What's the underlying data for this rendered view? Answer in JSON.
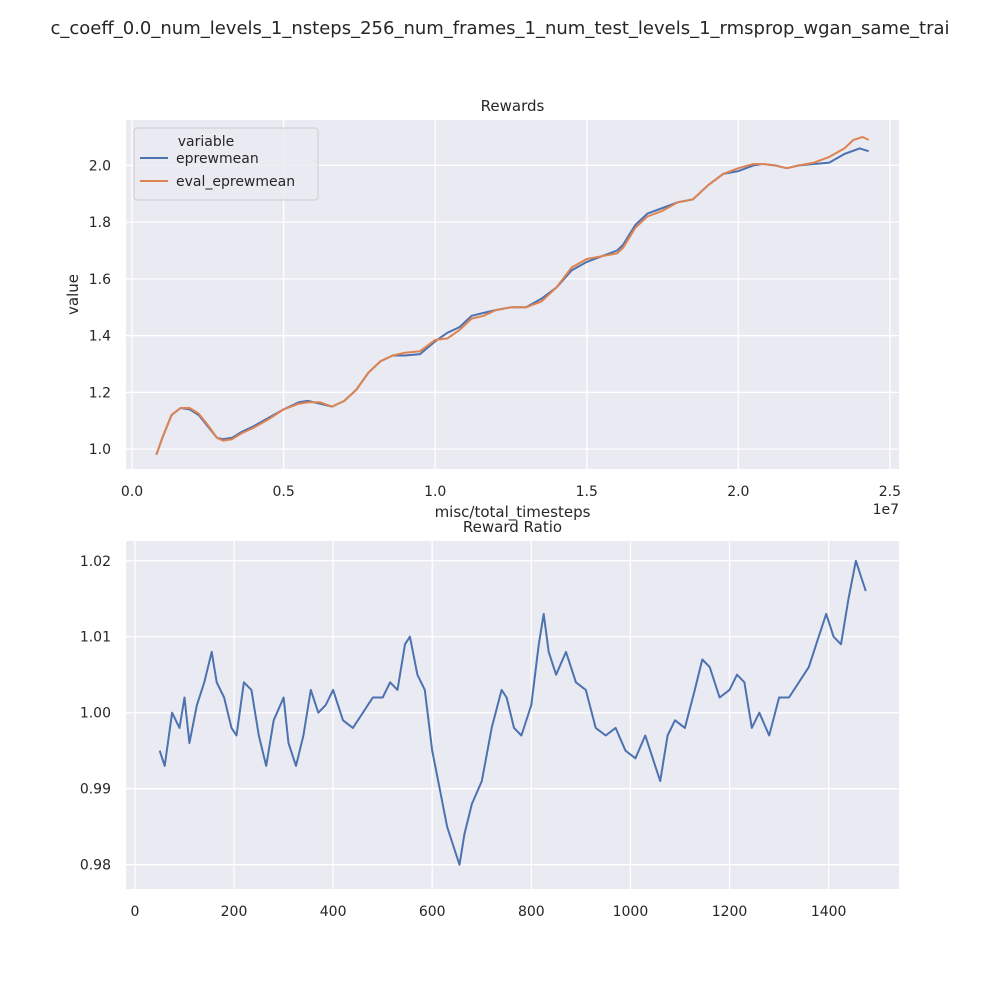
{
  "figure": {
    "suptitle": "c_coeff_0.0_num_levels_1_nsteps_256_num_frames_1_num_test_levels_1_rmsprop_wgan_same_trai"
  },
  "chart_data": [
    {
      "type": "line",
      "title": "Rewards",
      "xlabel": "misc/total_timesteps",
      "ylabel": "value",
      "x_offset_label": "1e7",
      "xlim": [
        -0.02,
        2.53
      ],
      "ylim": [
        0.93,
        2.16
      ],
      "xticks": [
        0.0,
        0.5,
        1.0,
        1.5,
        2.0,
        2.5
      ],
      "xtick_labels": [
        "0.0",
        "0.5",
        "1.0",
        "1.5",
        "2.0",
        "2.5"
      ],
      "yticks": [
        1.0,
        1.2,
        1.4,
        1.6,
        1.8,
        2.0
      ],
      "ytick_labels": [
        "1.0",
        "1.2",
        "1.4",
        "1.6",
        "1.8",
        "2.0"
      ],
      "grid": true,
      "legend": {
        "title": "variable",
        "position": "top-left"
      },
      "series": [
        {
          "name": "eprewmean",
          "color": "#4c72b0",
          "x": [
            0.08,
            0.1,
            0.13,
            0.16,
            0.19,
            0.22,
            0.25,
            0.28,
            0.3,
            0.33,
            0.36,
            0.4,
            0.45,
            0.5,
            0.55,
            0.58,
            0.62,
            0.66,
            0.7,
            0.74,
            0.78,
            0.82,
            0.86,
            0.9,
            0.95,
            1.0,
            1.04,
            1.08,
            1.12,
            1.16,
            1.2,
            1.25,
            1.3,
            1.35,
            1.4,
            1.45,
            1.5,
            1.55,
            1.6,
            1.62,
            1.66,
            1.7,
            1.75,
            1.8,
            1.85,
            1.9,
            1.95,
            2.0,
            2.05,
            2.08,
            2.12,
            2.16,
            2.2,
            2.25,
            2.3,
            2.35,
            2.4,
            2.43
          ],
          "values": [
            0.98,
            1.04,
            1.12,
            1.145,
            1.14,
            1.12,
            1.08,
            1.04,
            1.035,
            1.04,
            1.06,
            1.08,
            1.11,
            1.14,
            1.165,
            1.17,
            1.16,
            1.15,
            1.17,
            1.21,
            1.27,
            1.31,
            1.33,
            1.33,
            1.335,
            1.38,
            1.41,
            1.43,
            1.47,
            1.48,
            1.49,
            1.5,
            1.5,
            1.53,
            1.57,
            1.63,
            1.66,
            1.68,
            1.7,
            1.72,
            1.79,
            1.83,
            1.85,
            1.87,
            1.88,
            1.93,
            1.97,
            1.98,
            2.0,
            2.005,
            2.0,
            1.99,
            2.0,
            2.005,
            2.01,
            2.04,
            2.06,
            2.05
          ]
        },
        {
          "name": "eval_eprewmean",
          "color": "#dd8452",
          "x": [
            0.08,
            0.1,
            0.13,
            0.16,
            0.19,
            0.22,
            0.25,
            0.28,
            0.3,
            0.33,
            0.36,
            0.4,
            0.45,
            0.5,
            0.55,
            0.58,
            0.62,
            0.66,
            0.7,
            0.74,
            0.78,
            0.82,
            0.86,
            0.9,
            0.95,
            1.0,
            1.04,
            1.08,
            1.12,
            1.16,
            1.2,
            1.25,
            1.3,
            1.35,
            1.4,
            1.45,
            1.5,
            1.55,
            1.6,
            1.62,
            1.66,
            1.7,
            1.75,
            1.8,
            1.85,
            1.9,
            1.95,
            2.0,
            2.05,
            2.08,
            2.12,
            2.16,
            2.2,
            2.25,
            2.3,
            2.35,
            2.38,
            2.41,
            2.43
          ],
          "values": [
            0.98,
            1.04,
            1.12,
            1.145,
            1.145,
            1.125,
            1.085,
            1.04,
            1.03,
            1.035,
            1.055,
            1.075,
            1.105,
            1.14,
            1.16,
            1.165,
            1.165,
            1.15,
            1.17,
            1.21,
            1.27,
            1.31,
            1.33,
            1.34,
            1.345,
            1.385,
            1.39,
            1.42,
            1.46,
            1.47,
            1.49,
            1.5,
            1.5,
            1.52,
            1.57,
            1.64,
            1.67,
            1.68,
            1.69,
            1.71,
            1.78,
            1.82,
            1.84,
            1.87,
            1.88,
            1.93,
            1.97,
            1.99,
            2.005,
            2.005,
            2.0,
            1.99,
            2.0,
            2.01,
            2.03,
            2.06,
            2.09,
            2.1,
            2.09
          ]
        }
      ]
    },
    {
      "type": "line",
      "title": "Reward Ratio",
      "xlim": [
        -18,
        1542
      ],
      "ylim": [
        0.9768,
        1.0226
      ],
      "xticks": [
        0,
        200,
        400,
        600,
        800,
        1000,
        1200,
        1400
      ],
      "xtick_labels": [
        "0",
        "200",
        "400",
        "600",
        "800",
        "1000",
        "1200",
        "1400"
      ],
      "yticks": [
        0.98,
        0.99,
        1.0,
        1.01,
        1.02
      ],
      "ytick_labels": [
        "0.98",
        "0.99",
        "1.00",
        "1.01",
        "1.02"
      ],
      "grid": true,
      "series": [
        {
          "color": "#4c72b0",
          "x": [
            50,
            60,
            75,
            90,
            100,
            110,
            125,
            140,
            155,
            165,
            180,
            195,
            205,
            220,
            235,
            250,
            265,
            280,
            300,
            310,
            325,
            340,
            355,
            370,
            385,
            400,
            420,
            440,
            460,
            480,
            500,
            515,
            530,
            545,
            555,
            570,
            585,
            600,
            615,
            630,
            645,
            655,
            665,
            680,
            700,
            720,
            740,
            750,
            765,
            780,
            800,
            815,
            825,
            835,
            850,
            870,
            890,
            910,
            930,
            950,
            970,
            990,
            1010,
            1030,
            1050,
            1060,
            1075,
            1090,
            1110,
            1130,
            1145,
            1160,
            1180,
            1200,
            1215,
            1230,
            1245,
            1260,
            1280,
            1300,
            1320,
            1340,
            1360,
            1380,
            1395,
            1410,
            1425,
            1440,
            1455,
            1465,
            1475
          ],
          "values": [
            0.995,
            0.993,
            1.0,
            0.998,
            1.002,
            0.996,
            1.001,
            1.004,
            1.008,
            1.004,
            1.002,
            0.998,
            0.997,
            1.004,
            1.003,
            0.997,
            0.993,
            0.999,
            1.002,
            0.996,
            0.993,
            0.997,
            1.003,
            1.0,
            1.001,
            1.003,
            0.999,
            0.998,
            1.0,
            1.002,
            1.002,
            1.004,
            1.003,
            1.009,
            1.01,
            1.005,
            1.003,
            0.995,
            0.99,
            0.985,
            0.982,
            0.98,
            0.984,
            0.988,
            0.991,
            0.998,
            1.003,
            1.002,
            0.998,
            0.997,
            1.001,
            1.009,
            1.013,
            1.008,
            1.005,
            1.008,
            1.004,
            1.003,
            0.998,
            0.997,
            0.998,
            0.995,
            0.994,
            0.997,
            0.993,
            0.991,
            0.997,
            0.999,
            0.998,
            1.003,
            1.007,
            1.006,
            1.002,
            1.003,
            1.005,
            1.004,
            0.998,
            1.0,
            0.997,
            1.002,
            1.002,
            1.004,
            1.006,
            1.01,
            1.013,
            1.01,
            1.009,
            1.015,
            1.02,
            1.018,
            1.016
          ]
        }
      ]
    }
  ]
}
